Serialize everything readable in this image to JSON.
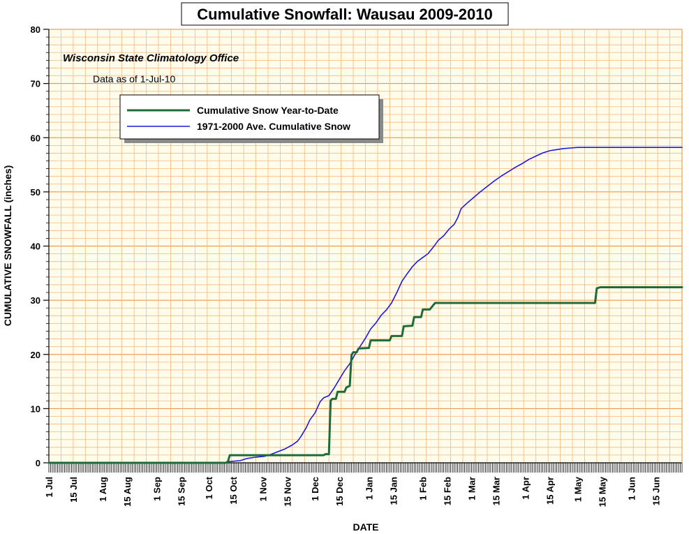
{
  "chart_data": {
    "type": "line",
    "title": "Cumulative Snowfall: Wausau 2009-2010",
    "subtitle": "Wisconsin State Climatology Office",
    "note": "Data as of 1-Jul-10",
    "xlabel": "DATE",
    "ylabel": "CUMULATIVE SNOWFALL (inches)",
    "ylim": [
      0,
      80
    ],
    "y_ticks": [
      0,
      10,
      20,
      30,
      40,
      50,
      60,
      70,
      80
    ],
    "x_range_days": [
      0,
      364
    ],
    "x_tick_labels": [
      {
        "label": "1 Jul",
        "day": 0
      },
      {
        "label": "15 Jul",
        "day": 14
      },
      {
        "label": "1 Aug",
        "day": 31
      },
      {
        "label": "15 Aug",
        "day": 45
      },
      {
        "label": "1 Sep",
        "day": 62
      },
      {
        "label": "15 Sep",
        "day": 76
      },
      {
        "label": "1 Oct",
        "day": 92
      },
      {
        "label": "15 Oct",
        "day": 106
      },
      {
        "label": "1 Nov",
        "day": 123
      },
      {
        "label": "15 Nov",
        "day": 137
      },
      {
        "label": "1 Dec",
        "day": 153
      },
      {
        "label": "15 Dec",
        "day": 167
      },
      {
        "label": "1 Jan",
        "day": 184
      },
      {
        "label": "15 Jan",
        "day": 198
      },
      {
        "label": "1 Feb",
        "day": 215
      },
      {
        "label": "15 Feb",
        "day": 229
      },
      {
        "label": "1 Mar",
        "day": 243
      },
      {
        "label": "15 Mar",
        "day": 257
      },
      {
        "label": "1 Apr",
        "day": 274
      },
      {
        "label": "15 Apr",
        "day": 288
      },
      {
        "label": "1 May",
        "day": 304
      },
      {
        "label": "15 May",
        "day": 318
      },
      {
        "label": "1 Jun",
        "day": 335
      },
      {
        "label": "15 Jun",
        "day": 349
      }
    ],
    "grid": true,
    "legend_position": "top-left",
    "colors": {
      "background": "#FFFCEC",
      "grid_minor": "#F4B77E",
      "grid_major": "#E9893A",
      "ytd": "#1E6B3A",
      "avg": "#1A1AD8"
    },
    "series": [
      {
        "name": "Cumulative Snow Year-to-Date",
        "color": "#1E6B3A",
        "points": [
          [
            0,
            0
          ],
          [
            102,
            0
          ],
          [
            103,
            0.3
          ],
          [
            104,
            1.4
          ],
          [
            158,
            1.4
          ],
          [
            159,
            1.6
          ],
          [
            161,
            1.6
          ],
          [
            162,
            11.5
          ],
          [
            163,
            11.8
          ],
          [
            165,
            11.8
          ],
          [
            166,
            13.1
          ],
          [
            170,
            13.1
          ],
          [
            171,
            13.9
          ],
          [
            173,
            14.2
          ],
          [
            174,
            19.9
          ],
          [
            175,
            20.4
          ],
          [
            177,
            20.4
          ],
          [
            178,
            21.1
          ],
          [
            184,
            21.2
          ],
          [
            185,
            22.6
          ],
          [
            196,
            22.6
          ],
          [
            197,
            23.4
          ],
          [
            203,
            23.4
          ],
          [
            204,
            25.2
          ],
          [
            209,
            25.3
          ],
          [
            210,
            26.9
          ],
          [
            214,
            26.9
          ],
          [
            215,
            28.3
          ],
          [
            219,
            28.3
          ],
          [
            220,
            28.7
          ],
          [
            222,
            29.5
          ],
          [
            314,
            29.5
          ],
          [
            315,
            32.2
          ],
          [
            317,
            32.4
          ],
          [
            364,
            32.4
          ]
        ]
      },
      {
        "name": "1971-2000 Ave. Cumulative Snow",
        "color": "#1A1AD8",
        "points": [
          [
            0,
            0
          ],
          [
            102,
            0
          ],
          [
            103,
            0.2
          ],
          [
            110,
            0.4
          ],
          [
            114,
            0.8
          ],
          [
            118,
            1.0
          ],
          [
            124,
            1.2
          ],
          [
            128,
            1.6
          ],
          [
            132,
            2.1
          ],
          [
            136,
            2.6
          ],
          [
            140,
            3.3
          ],
          [
            143,
            4.0
          ],
          [
            145,
            4.9
          ],
          [
            148,
            6.5
          ],
          [
            150,
            7.9
          ],
          [
            153,
            9.2
          ],
          [
            156,
            11.3
          ],
          [
            158,
            12.0
          ],
          [
            161,
            12.4
          ],
          [
            164,
            13.8
          ],
          [
            167,
            15.4
          ],
          [
            170,
            17.0
          ],
          [
            173,
            18.3
          ],
          [
            176,
            20.0
          ],
          [
            179,
            21.5
          ],
          [
            182,
            23.0
          ],
          [
            185,
            24.7
          ],
          [
            188,
            25.8
          ],
          [
            191,
            27.2
          ],
          [
            194,
            28.2
          ],
          [
            197,
            29.5
          ],
          [
            200,
            31.4
          ],
          [
            203,
            33.5
          ],
          [
            206,
            34.9
          ],
          [
            209,
            36.2
          ],
          [
            212,
            37.2
          ],
          [
            215,
            37.9
          ],
          [
            218,
            38.6
          ],
          [
            221,
            39.8
          ],
          [
            224,
            41.1
          ],
          [
            227,
            41.9
          ],
          [
            230,
            43.1
          ],
          [
            233,
            44.0
          ],
          [
            235,
            45.2
          ],
          [
            237,
            46.9
          ],
          [
            240,
            47.8
          ],
          [
            244,
            48.9
          ],
          [
            248,
            50.0
          ],
          [
            252,
            51.0
          ],
          [
            256,
            52.0
          ],
          [
            260,
            52.9
          ],
          [
            264,
            53.7
          ],
          [
            268,
            54.5
          ],
          [
            272,
            55.2
          ],
          [
            276,
            56.0
          ],
          [
            280,
            56.6
          ],
          [
            284,
            57.2
          ],
          [
            288,
            57.6
          ],
          [
            292,
            57.8
          ],
          [
            296,
            58.0
          ],
          [
            300,
            58.1
          ],
          [
            304,
            58.2
          ],
          [
            364,
            58.2
          ]
        ]
      }
    ]
  }
}
